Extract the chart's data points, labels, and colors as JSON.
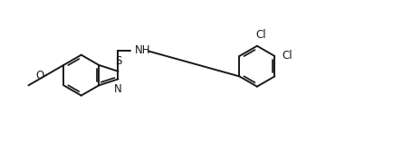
{
  "bg_color": "#ffffff",
  "line_color": "#1a1a1a",
  "line_width": 1.4,
  "font_size": 8.5,
  "figsize": [
    4.34,
    1.58
  ],
  "dpi": 100,
  "xlim": [
    0,
    10
  ],
  "ylim": [
    0,
    3.63
  ]
}
